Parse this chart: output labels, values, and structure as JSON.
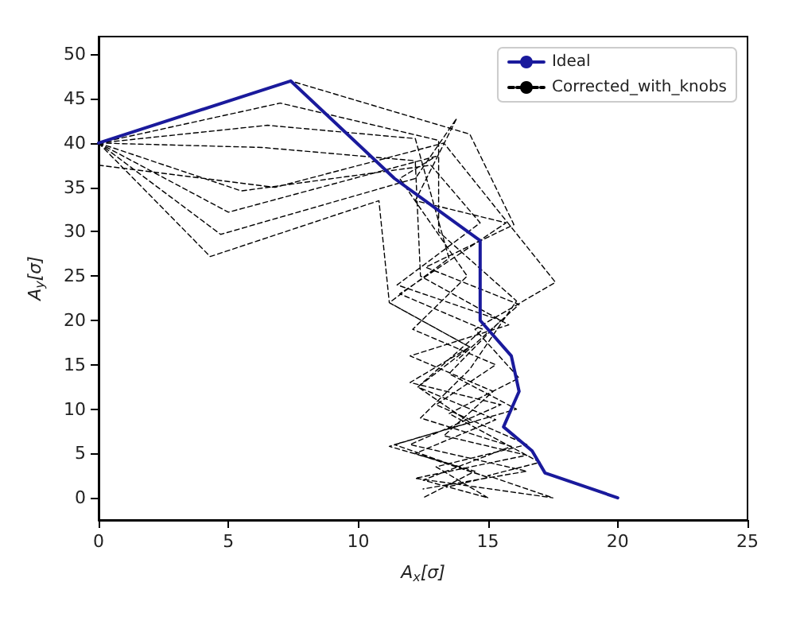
{
  "chart_data": {
    "type": "line",
    "xlabel": "A$_{x}$[σ]",
    "ylabel": "A$_{y}$[σ]",
    "xlim": [
      0,
      25
    ],
    "ylim": [
      -2.5,
      52
    ],
    "xticks": [
      0,
      5,
      10,
      15,
      20,
      25
    ],
    "yticks": [
      0,
      5,
      10,
      15,
      20,
      25,
      30,
      35,
      40,
      45,
      50
    ],
    "grid": false,
    "legend": "top right",
    "marker": "none",
    "series": [
      {
        "name": "Ideal",
        "color": "#1a1a9c",
        "line_style": "solid",
        "x": [
          0,
          7.4,
          11.4,
          14.7,
          14.7,
          15.9,
          16.2,
          15.6,
          16.7,
          17.2,
          20
        ],
        "values": [
          40,
          47,
          36,
          29,
          20,
          16,
          12,
          8,
          5.3,
          2.8,
          0
        ]
      },
      {
        "name": "Corrected_with_knobs",
        "color": "#000000",
        "line_style": "dashed",
        "x": [
          0,
          7,
          13.1,
          13.1,
          16.1,
          14.3,
          12.4,
          15.9,
          12.5,
          15,
          null,
          0,
          6.5,
          12.2,
          13.5,
          11.2,
          14.3,
          12.3,
          14.3,
          11.2,
          14.5,
          12.5,
          null,
          0,
          6.3,
          12.2,
          12.4,
          15.8,
          12,
          15.2,
          13.3,
          16.5,
          12.2,
          17.5,
          null,
          0,
          5.5,
          12.8,
          14.7,
          11.5,
          15.5,
          13.5,
          16.1,
          11.4,
          15,
          13.4,
          null,
          0,
          5,
          13,
          11.6,
          14.2,
          12.1,
          15.3,
          13,
          16.5,
          13,
          15,
          null,
          0,
          4.7,
          12.2,
          13.8,
          12.2,
          15.7,
          11.6,
          14.8,
          12.3,
          15.3,
          12.2,
          14.9,
          null,
          0,
          4.3,
          10.8,
          11.2,
          14.3,
          12,
          15.5,
          12,
          16.5,
          12.5,
          null,
          0,
          6.8,
          13.3,
          17.6,
          14.5,
          16.2,
          13.5,
          17,
          15,
          17.5,
          null,
          0,
          7.4,
          14.3,
          16,
          12.6,
          16.2,
          13.8
        ],
        "values": [
          40,
          44.5,
          40.3,
          30,
          22.2,
          14.5,
          9,
          5.8,
          2,
          0,
          null,
          40,
          42,
          40.5,
          27,
          22,
          17,
          12.5,
          8.5,
          5.8,
          3,
          0,
          null,
          40,
          39.5,
          38,
          25,
          19.5,
          16,
          12,
          7,
          4.8,
          2.2,
          0,
          null,
          40,
          34.6,
          37.5,
          31,
          24,
          20,
          14,
          10,
          6,
          2.3,
          1.2,
          null,
          40,
          32.2,
          38.5,
          36,
          25,
          19,
          15,
          10.5,
          6,
          3.5,
          0,
          null,
          40,
          29.7,
          36,
          42.8,
          33.5,
          31,
          23,
          19,
          12.5,
          8.8,
          5,
          2.4,
          null,
          40,
          27.2,
          33.5,
          22,
          17,
          13,
          10.5,
          6,
          3,
          1,
          null,
          37.5,
          35,
          40,
          24.3,
          19,
          13.5,
          9.5,
          4,
          2.5,
          0,
          null,
          40,
          47,
          41,
          30.8,
          26,
          21.8,
          15.5
        ]
      }
    ]
  }
}
